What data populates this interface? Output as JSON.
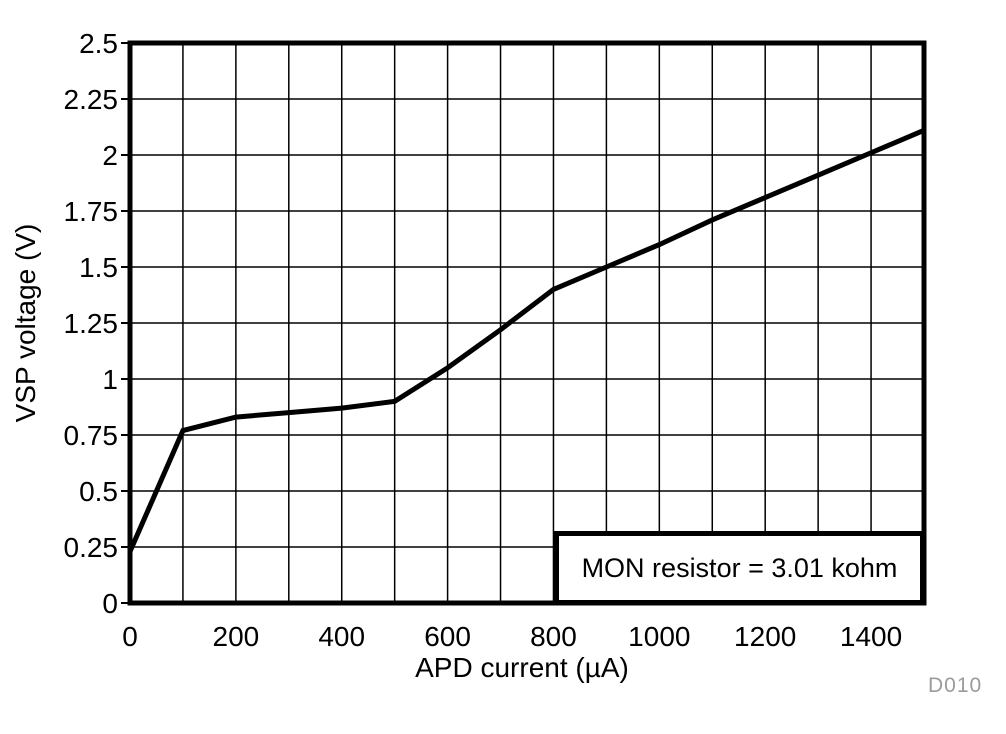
{
  "figure": {
    "background_color": "#ffffff",
    "line_color": "#000000",
    "grid_color": "#000000",
    "watermark": "D010",
    "watermark_color": "#9b9b9b"
  },
  "legend": {
    "text": "MON resistor = 3.01 kohm"
  },
  "chart_data": {
    "type": "line",
    "title": "",
    "xlabel": "APD current (µA)",
    "ylabel": "VSP voltage (V)",
    "xlim": [
      0,
      1500
    ],
    "ylim": [
      0,
      2.5
    ],
    "grid": true,
    "x_grid_step": 100,
    "y_grid_step": 0.25,
    "legend_position": "bottom-right",
    "x_tick_labels": [
      "0",
      "200",
      "400",
      "600",
      "800",
      "1000",
      "1200",
      "1400"
    ],
    "x_tick_values": [
      0,
      200,
      400,
      600,
      800,
      1000,
      1200,
      1400
    ],
    "y_tick_labels": [
      "0",
      "0.25",
      "0.5",
      "0.75",
      "1",
      "1.25",
      "1.5",
      "1.75",
      "2",
      "2.25",
      "2.5"
    ],
    "y_tick_values": [
      0,
      0.25,
      0.5,
      0.75,
      1,
      1.25,
      1.5,
      1.75,
      2,
      2.25,
      2.5
    ],
    "series": [
      {
        "name": "MON resistor = 3.01 kohm",
        "x": [
          0,
          100,
          200,
          300,
          400,
          500,
          600,
          700,
          800,
          900,
          1000,
          1100,
          1200,
          1300,
          1400,
          1500
        ],
        "y": [
          0.23,
          0.77,
          0.83,
          0.85,
          0.87,
          0.9,
          1.05,
          1.22,
          1.4,
          1.5,
          1.6,
          1.71,
          1.81,
          1.91,
          2.01,
          2.11
        ]
      }
    ]
  }
}
